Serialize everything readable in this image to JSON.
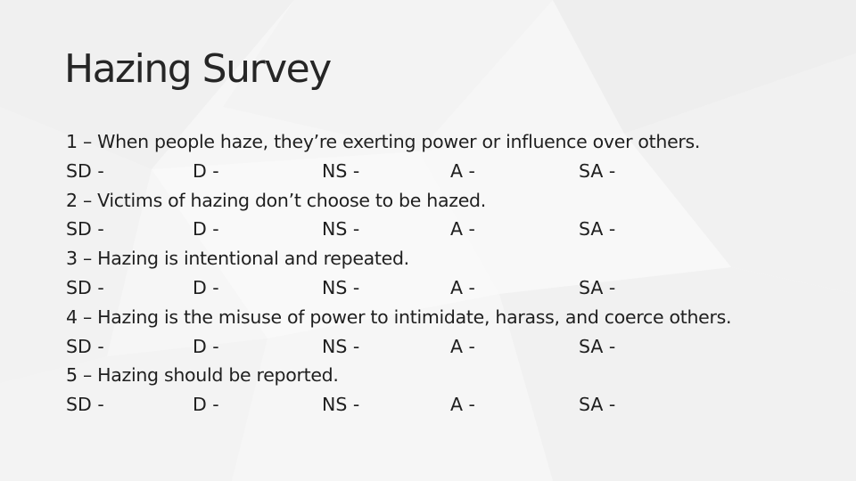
{
  "slide": {
    "title": "Hazing Survey",
    "questions": [
      {
        "text": "1 – When people haze, they’re exerting power or influence over others.",
        "options": [
          "SD -",
          "D -",
          "NS -",
          "A -",
          "SA -"
        ]
      },
      {
        "text": "2 – Victims of hazing don’t choose to be hazed.",
        "options": [
          "SD -",
          "D -",
          "NS -",
          "A -",
          "SA -"
        ]
      },
      {
        "text": "3 – Hazing is intentional and repeated.",
        "options": [
          "SD -",
          "D -",
          "NS -",
          "A -",
          "SA -"
        ]
      },
      {
        "text": "4 – Hazing is the misuse of power to intimidate, harass, and coerce others.",
        "options": [
          "SD -",
          "D -",
          "NS -",
          "A -",
          "SA -"
        ]
      },
      {
        "text": "5 – Hazing should be reported.",
        "options": [
          "SD -",
          "D -",
          "NS -",
          "A -",
          "SA -"
        ]
      }
    ]
  }
}
